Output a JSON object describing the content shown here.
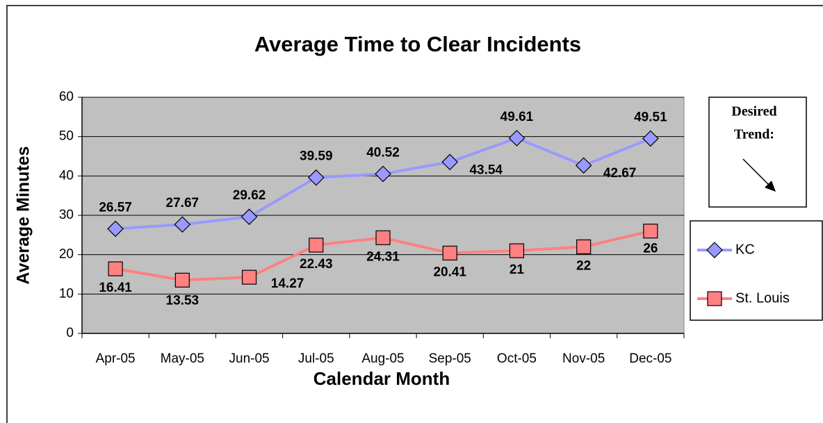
{
  "chart_data": {
    "type": "line",
    "title": "Average Time to Clear Incidents",
    "xlabel": "Calendar Month",
    "ylabel": "Average Minutes",
    "categories": [
      "Apr-05",
      "May-05",
      "Jun-05",
      "Jul-05",
      "Aug-05",
      "Sep-05",
      "Oct-05",
      "Nov-05",
      "Dec-05"
    ],
    "series": [
      {
        "name": "KC",
        "color": "#9999ff",
        "marker": "diamond",
        "values": [
          26.57,
          27.67,
          29.62,
          39.59,
          40.52,
          43.54,
          49.61,
          42.67,
          49.51
        ]
      },
      {
        "name": "St. Louis",
        "color": "#ff8080",
        "marker": "square",
        "values": [
          16.41,
          13.53,
          14.27,
          22.43,
          24.31,
          20.41,
          21,
          22,
          26
        ]
      }
    ],
    "ylim": [
      0,
      60
    ],
    "yticks": [
      0,
      10,
      20,
      30,
      40,
      50,
      60
    ],
    "grid": true,
    "plot_background": "#c0c0c0",
    "legend": "right",
    "annotations": [
      "Desired",
      "Trend:"
    ]
  }
}
